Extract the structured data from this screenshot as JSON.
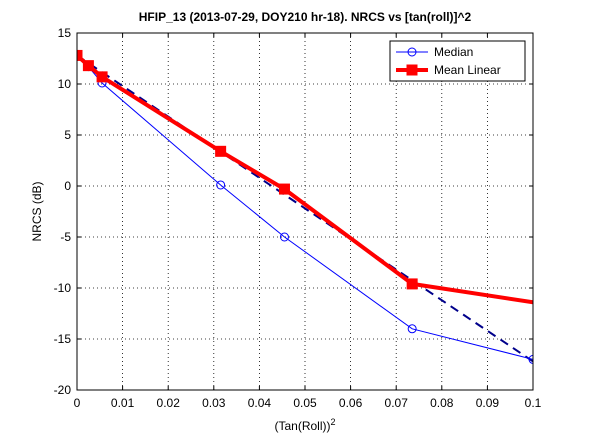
{
  "chart_data": {
    "type": "line",
    "title": "HFIP_13 (2013-07-29, DOY210 hr-18).  NRCS vs [tan(roll)]^2",
    "xlabel": "(Tan(Roll))",
    "xlabel_superscript": "2",
    "ylabel": "NRCS (dB)",
    "xlim": [
      0,
      0.1
    ],
    "ylim": [
      -20,
      15
    ],
    "xticks": [
      0,
      0.01,
      0.02,
      0.03,
      0.04,
      0.05,
      0.06,
      0.07,
      0.08,
      0.09,
      0.1
    ],
    "xtick_labels": [
      "0",
      "0.01",
      "0.02",
      "0.03",
      "0.04",
      "0.05",
      "0.06",
      "0.07",
      "0.08",
      "0.09",
      "0.1"
    ],
    "yticks": [
      -20,
      -15,
      -10,
      -5,
      0,
      5,
      10,
      15
    ],
    "ytick_labels": [
      "-20",
      "-15",
      "-10",
      "-5",
      "0",
      "5",
      "10",
      "15"
    ],
    "grid": true,
    "legend_position": "top-right",
    "series": [
      {
        "name": "Median",
        "color": "#0000ff",
        "style": "thin-line-circles",
        "x": [
          0,
          0.0025,
          0.0055,
          0.0315,
          0.0455,
          0.0735,
          0.1
        ],
        "y": [
          12.8,
          11.7,
          10.1,
          0.1,
          -5.0,
          -14.0,
          -17.0
        ]
      },
      {
        "name": "",
        "color": "#00008b",
        "style": "dashed-fit",
        "x": [
          0,
          0.1
        ],
        "y": [
          12.8,
          -17.2
        ]
      },
      {
        "name": "Mean Linear",
        "color": "#ff0000",
        "style": "thick-line-squares",
        "x": [
          0,
          0.0025,
          0.0055,
          0.0315,
          0.0455,
          0.0735,
          0.1
        ],
        "y": [
          12.8,
          11.8,
          10.7,
          3.4,
          -0.3,
          -9.6,
          -11.4
        ]
      }
    ]
  }
}
